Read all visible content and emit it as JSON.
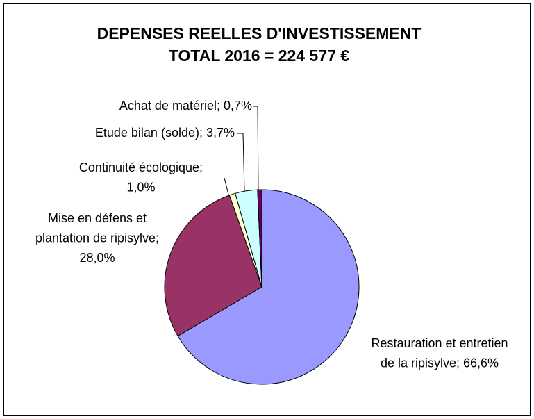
{
  "chart_data": {
    "type": "pie",
    "title": [
      "DEPENSES REELLES D'INVESTISSEMENT",
      "TOTAL 2016 = 224 577 €"
    ],
    "categories": [
      "Restauration et entretien de la ripisylve",
      "Mise en défens et plantation de ripisylve",
      "Continuité écologique",
      "Etude bilan (solde)",
      "Achat de matériel"
    ],
    "values": [
      66.6,
      28.0,
      1.0,
      3.7,
      0.7
    ],
    "value_labels": [
      [
        "Restauration et entretien",
        "de la ripisylve; 66,6%"
      ],
      [
        "Mise en défens et",
        "plantation de ripisylve;",
        "28,0%"
      ],
      [
        "Continuité écologique;",
        "1,0%"
      ],
      [
        "Etude bilan (solde); 3,7%"
      ],
      [
        "Achat de matériel; 0,7%"
      ]
    ],
    "colors": [
      "#9999ff",
      "#993366",
      "#ffffcc",
      "#ccffff",
      "#660066"
    ]
  }
}
